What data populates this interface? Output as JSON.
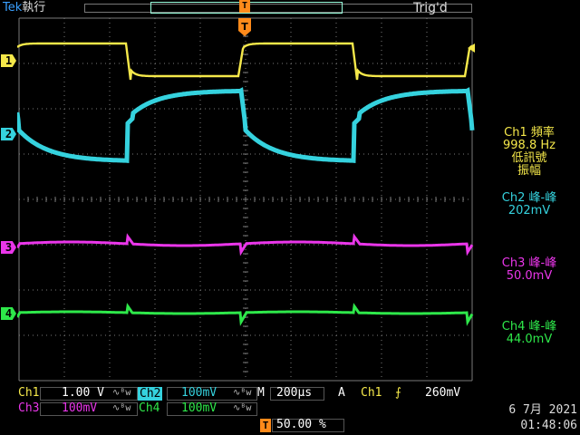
{
  "header": {
    "brand": "Tek",
    "run_status": "執行",
    "trigger_status": "Trig'd",
    "trigger_marker_label": "T"
  },
  "channels": [
    {
      "id": "1",
      "color": "#f5e84a"
    },
    {
      "id": "2",
      "color": "#35d2de"
    },
    {
      "id": "3",
      "color": "#ea36ea"
    },
    {
      "id": "4",
      "color": "#2ee84a"
    }
  ],
  "measurements": {
    "ch1": {
      "line1": "Ch1 頻率",
      "value": "998.8 Hz",
      "line3": "低訊號",
      "line4": "振幅"
    },
    "ch2": {
      "label": "Ch2 峰-峰",
      "value": "202mV"
    },
    "ch3": {
      "label": "Ch3 峰-峰",
      "value": "50.0mV"
    },
    "ch4": {
      "label": "Ch4 峰-峰",
      "value": "44.0mV"
    }
  },
  "status_bar": {
    "ch1_label": "Ch1",
    "ch1_scale": "1.00 V",
    "ch2_label": "Ch2",
    "ch2_scale": "100mV",
    "ch3_label": "Ch3",
    "ch3_scale": "100mV",
    "ch4_label": "Ch4",
    "ch4_scale": "100mV",
    "bw_glyph": "∿ᴮw",
    "timebase_label": "M",
    "timebase": "200µs",
    "trigger_mode": "A",
    "trigger_source": "Ch1",
    "trigger_slope": "⨍",
    "trigger_level": "260mV",
    "trigger_position": "50.00 %",
    "date": "6 7月  2021",
    "time": "01:48:06"
  },
  "colors": {
    "ch1": "#f5e84a",
    "ch2": "#35d2de",
    "ch3": "#ea36ea",
    "ch4": "#2ee84a",
    "grid": "#8a8a8a",
    "trigger": "#ff8a1a"
  }
}
